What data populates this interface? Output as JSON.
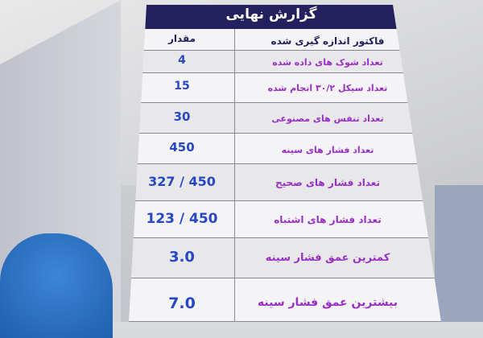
{
  "report": {
    "title": "گزارش نهایی",
    "headers": {
      "value": "مقدار",
      "factor": "فاکتور اندازه گیری شده"
    },
    "rows": [
      {
        "label": "تعداد شوک های داده شده",
        "value": "4"
      },
      {
        "label": "تعداد سیکل ۳۰/۲ انجام شده",
        "value": "15"
      },
      {
        "label": "تعداد تنفس های مصنوعی",
        "value": "30"
      },
      {
        "label": "تعداد فشار های سینه",
        "value": "450"
      },
      {
        "label": "تعداد فشار های صحیح",
        "value": "327 / 450"
      },
      {
        "label": "تعداد فشار های اشتباه",
        "value": "123 / 450"
      },
      {
        "label": "کمترین عمق فشار سینه",
        "value": "3.0"
      },
      {
        "label": "بیشترین عمق فشار سینه",
        "value": "7.0"
      }
    ]
  },
  "colors": {
    "header": "#24205e",
    "label": "#9a2fc6",
    "value": "#2747c4"
  }
}
